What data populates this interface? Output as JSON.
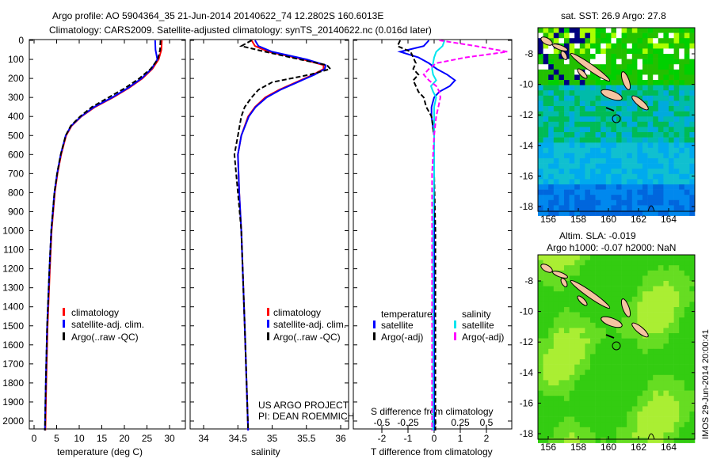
{
  "title_line1": "Argo profile: AO 5904364_35 21-Jun-2014 20140622_74 12.2802S 160.6013E",
  "title_line2": "Climatology: CARS2009. Satellite-adjusted climatology: synTS_20140622.nc (0.016d later)",
  "credit_line1": "US ARGO PROJECT",
  "credit_line2": "PI: DEAN ROEMMICH",
  "side_label": "IMOS 29-Jun-2014 20:00:41",
  "colors": {
    "climatology": "#ff0000",
    "satellite": "#0000ff",
    "argo": "#000000",
    "sal_satellite": "#00e5ee",
    "sal_argo": "#ff00ff"
  },
  "chart_data": [
    {
      "type": "line",
      "id": "temperature",
      "xlabel": "temperature (deg C)",
      "ylabel": "",
      "xlim": [
        -0.5,
        31
      ],
      "ylim": [
        2050,
        0
      ],
      "xticks": [
        "0",
        "5",
        "10",
        "15",
        "20",
        "25",
        "30"
      ],
      "yticks": [
        "0",
        "100",
        "200",
        "300",
        "400",
        "500",
        "600",
        "700",
        "800",
        "900",
        "1000",
        "1100",
        "1200",
        "1300",
        "1400",
        "1500",
        "1600",
        "1700",
        "1800",
        "1900",
        "2000"
      ],
      "legend": [
        "climatology",
        "satellite-adj. clim.",
        "Argo(..raw -QC)"
      ],
      "depth": [
        0,
        50,
        100,
        150,
        200,
        250,
        300,
        350,
        400,
        450,
        500,
        600,
        700,
        800,
        1000,
        1200,
        1500,
        1800,
        2050
      ],
      "series": [
        {
          "name": "climatology",
          "values": [
            28.3,
            28.2,
            27.6,
            26.2,
            24.0,
            21.0,
            17.5,
            13.5,
            10.5,
            8.3,
            7.1,
            6.0,
            5.2,
            4.6,
            3.9,
            3.5,
            3.0,
            2.7,
            2.5
          ]
        },
        {
          "name": "satellite-adj. clim.",
          "values": [
            26.8,
            26.9,
            27.3,
            26.0,
            23.8,
            20.8,
            17.3,
            13.3,
            10.4,
            8.2,
            7.0,
            5.9,
            5.1,
            4.5,
            3.8,
            3.4,
            2.9,
            2.6,
            2.4
          ]
        },
        {
          "name": "Argo(..raw -QC)",
          "values": [
            28.0,
            27.9,
            27.4,
            25.8,
            23.3,
            20.2,
            16.5,
            12.8,
            10.2,
            8.1,
            7.0,
            5.9,
            5.1,
            4.5,
            3.8,
            3.4,
            2.9,
            2.6,
            2.4
          ]
        }
      ]
    },
    {
      "type": "line",
      "id": "salinity",
      "xlabel": "salinity",
      "xlim": [
        33.8,
        36.1
      ],
      "ylim": [
        2050,
        0
      ],
      "xticks": [
        "34",
        "34.5",
        "35",
        "35.5",
        "36"
      ],
      "xtick_values": [
        34,
        34.5,
        35,
        35.5,
        36
      ],
      "legend": [
        "climatology",
        "satellite-adj. clim.",
        "Argo(..raw -QC)"
      ],
      "depth": [
        0,
        30,
        60,
        100,
        130,
        150,
        180,
        220,
        260,
        300,
        350,
        400,
        500,
        600,
        800,
        1000,
        1500,
        2050
      ],
      "series": [
        {
          "name": "climatology",
          "values": [
            34.7,
            34.75,
            34.95,
            35.45,
            35.75,
            35.75,
            35.6,
            35.35,
            35.1,
            34.9,
            34.75,
            34.65,
            34.55,
            34.5,
            34.52,
            34.55,
            34.6,
            34.65
          ]
        },
        {
          "name": "satellite-adj. clim.",
          "values": [
            34.75,
            34.8,
            35.0,
            35.5,
            35.78,
            35.77,
            35.62,
            35.37,
            35.12,
            34.92,
            34.76,
            34.66,
            34.55,
            34.5,
            34.52,
            34.55,
            34.6,
            34.65
          ]
        },
        {
          "name": "Argo(..raw -QC)",
          "values": [
            34.7,
            34.55,
            34.9,
            35.4,
            35.8,
            35.85,
            35.55,
            35.0,
            34.8,
            34.7,
            34.6,
            34.55,
            34.5,
            34.45,
            34.5,
            34.55,
            34.6,
            34.65
          ]
        }
      ]
    },
    {
      "type": "line",
      "id": "difference",
      "xlabel": "T difference from climatology",
      "x2label": "S difference from climatology",
      "xlim": [
        -3.1,
        2.95
      ],
      "ylim": [
        2050,
        0
      ],
      "xticks": [
        "-2",
        "-1",
        "0",
        "1",
        "2"
      ],
      "xtick_values": [
        -2,
        -1,
        0,
        1,
        2
      ],
      "x2ticks": [
        "-0.5",
        "-0.25",
        "0",
        "0.25",
        "0.5"
      ],
      "x2tick_values": [
        -0.5,
        -0.25,
        0,
        0.25,
        0.5
      ],
      "legend_titles": [
        "temperature",
        "salinity"
      ],
      "legend": [
        "satellite",
        "Argo(-adj)",
        "satellite",
        "Argo(-adj)"
      ],
      "depth": [
        0,
        30,
        60,
        90,
        120,
        150,
        180,
        210,
        240,
        270,
        300,
        350,
        400,
        500,
        700,
        1000,
        1500,
        2050
      ],
      "series": [
        {
          "name": "T satellite",
          "axis": "T",
          "values": [
            -0.2,
            -0.4,
            -1.3,
            -0.6,
            -0.2,
            0.1,
            0.5,
            0.8,
            0.6,
            0.2,
            0.0,
            -0.1,
            -0.1,
            0.0,
            0.0,
            0.0,
            0.0,
            0.0
          ]
        },
        {
          "name": "T Argo(-adj)",
          "axis": "T",
          "values": [
            -1.3,
            -1.4,
            -0.9,
            -0.8,
            -0.7,
            -0.8,
            -0.6,
            -0.8,
            -0.7,
            -0.6,
            -0.4,
            -0.3,
            -0.1,
            0.0,
            0.0,
            0.05,
            0.05,
            0.05
          ]
        },
        {
          "name": "S satellite",
          "axis": "S",
          "values": [
            0.1,
            0.08,
            0.02,
            0.0,
            -0.01,
            -0.02,
            -0.01,
            0.02,
            -0.03,
            -0.01,
            0.02,
            0.0,
            0.0,
            0.0,
            0.0,
            -0.01,
            -0.01,
            -0.01
          ]
        },
        {
          "name": "S Argo(-adj)",
          "axis": "S",
          "values": [
            0.05,
            0.4,
            0.7,
            0.3,
            0.02,
            -0.05,
            -0.1,
            -0.05,
            0.02,
            0.05,
            0.06,
            0.04,
            0.02,
            0.0,
            -0.02,
            -0.02,
            -0.02,
            -0.02
          ]
        }
      ]
    }
  ],
  "maps": [
    {
      "id": "sst",
      "title": "sat. SST: 26.9 Argo: 27.8",
      "xticks": [
        "156",
        "158",
        "160",
        "162",
        "164"
      ],
      "yticks": [
        "-8",
        "-10",
        "-12",
        "-14",
        "-16",
        "-18"
      ]
    },
    {
      "id": "sla",
      "title_line1": "Altim. SLA: -0.019",
      "title_line2": "Argo h1000: -0.07 h2000: NaN",
      "xticks": [
        "156",
        "158",
        "160",
        "162",
        "164"
      ],
      "yticks": [
        "-8",
        "-10",
        "-12",
        "-14",
        "-16",
        "-18"
      ]
    }
  ],
  "argo_position": {
    "lon": 160.6013,
    "lat": -12.2802
  }
}
